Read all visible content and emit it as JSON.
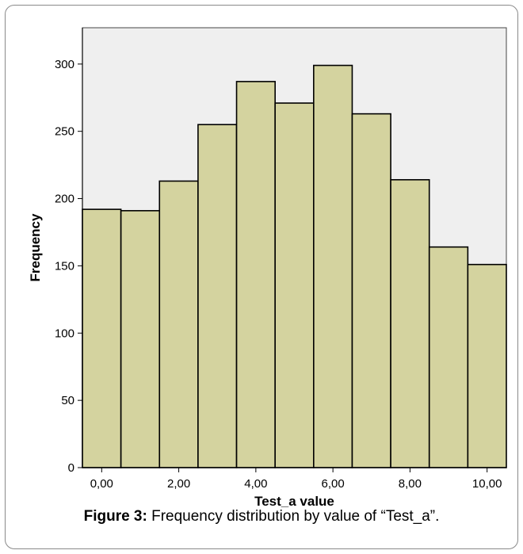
{
  "chart_data": {
    "type": "bar",
    "xlabel": "Test_a value",
    "ylabel": "Frequency",
    "x_tick_labels": [
      "0,00",
      "2,00",
      "4,00",
      "6,00",
      "8,00",
      "10,00"
    ],
    "x_tick_values": [
      0,
      2,
      4,
      6,
      8,
      10
    ],
    "y_ticks": [
      0,
      50,
      100,
      150,
      200,
      250,
      300
    ],
    "ylim": [
      0,
      327
    ],
    "xlim": [
      -0.5,
      10.5
    ],
    "bins": [
      {
        "center": 0,
        "value": 192
      },
      {
        "center": 1,
        "value": 191
      },
      {
        "center": 2,
        "value": 213
      },
      {
        "center": 3,
        "value": 255
      },
      {
        "center": 4,
        "value": 287
      },
      {
        "center": 5,
        "value": 271
      },
      {
        "center": 6,
        "value": 299
      },
      {
        "center": 7,
        "value": 263
      },
      {
        "center": 8,
        "value": 214
      },
      {
        "center": 9,
        "value": 164
      },
      {
        "center": 10,
        "value": 151
      }
    ],
    "bar_color": "#d4d39f",
    "plot_background": "#efefef",
    "grid": false
  },
  "caption": {
    "label": "Figure 3:",
    "text": " Frequency distribution by value of “Test_a”."
  }
}
